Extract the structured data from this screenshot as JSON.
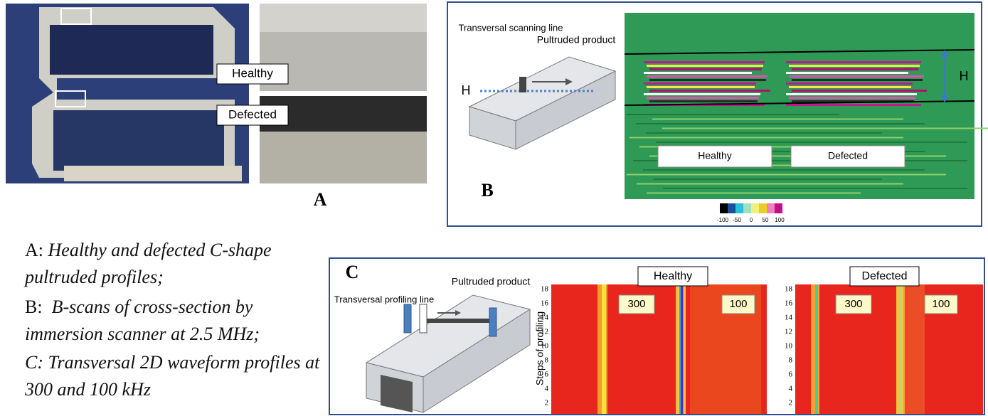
{
  "panel_a": {
    "label": "A",
    "healthy": "Healthy",
    "defected": "Defected"
  },
  "panel_b": {
    "label": "B",
    "scanning_line": "Transversal scanning line",
    "product": "Pultruded product",
    "h_left": "H",
    "h_right": "H",
    "healthy": "Healthy",
    "defected": "Defected",
    "colorbar_ticks": [
      -100,
      -50,
      0,
      50,
      100
    ]
  },
  "panel_c": {
    "label": "C",
    "product": "Pultruded product",
    "profiling_line": "Transversal profiling line",
    "axis_label": "Steps of profiling",
    "heatmaps": [
      {
        "title": "Healthy",
        "labels": [
          300,
          100
        ],
        "yticks": [
          2,
          4,
          6,
          8,
          10,
          12,
          14,
          16,
          18
        ]
      },
      {
        "title": "Defected",
        "labels": [
          300,
          100
        ],
        "yticks": [
          2,
          4,
          6,
          8,
          10,
          12,
          14,
          16,
          18
        ]
      }
    ]
  },
  "captions": [
    {
      "label": "A:",
      "text": "Healthy and defected C-shape pultruded profiles;"
    },
    {
      "label": "B:",
      "text": "B-scans of cross-section by immersion scanner at 2.5 MHz;"
    },
    {
      "label": "C:",
      "text": "Transversal 2D waveform profiles at 300 and 100 kHz"
    }
  ]
}
